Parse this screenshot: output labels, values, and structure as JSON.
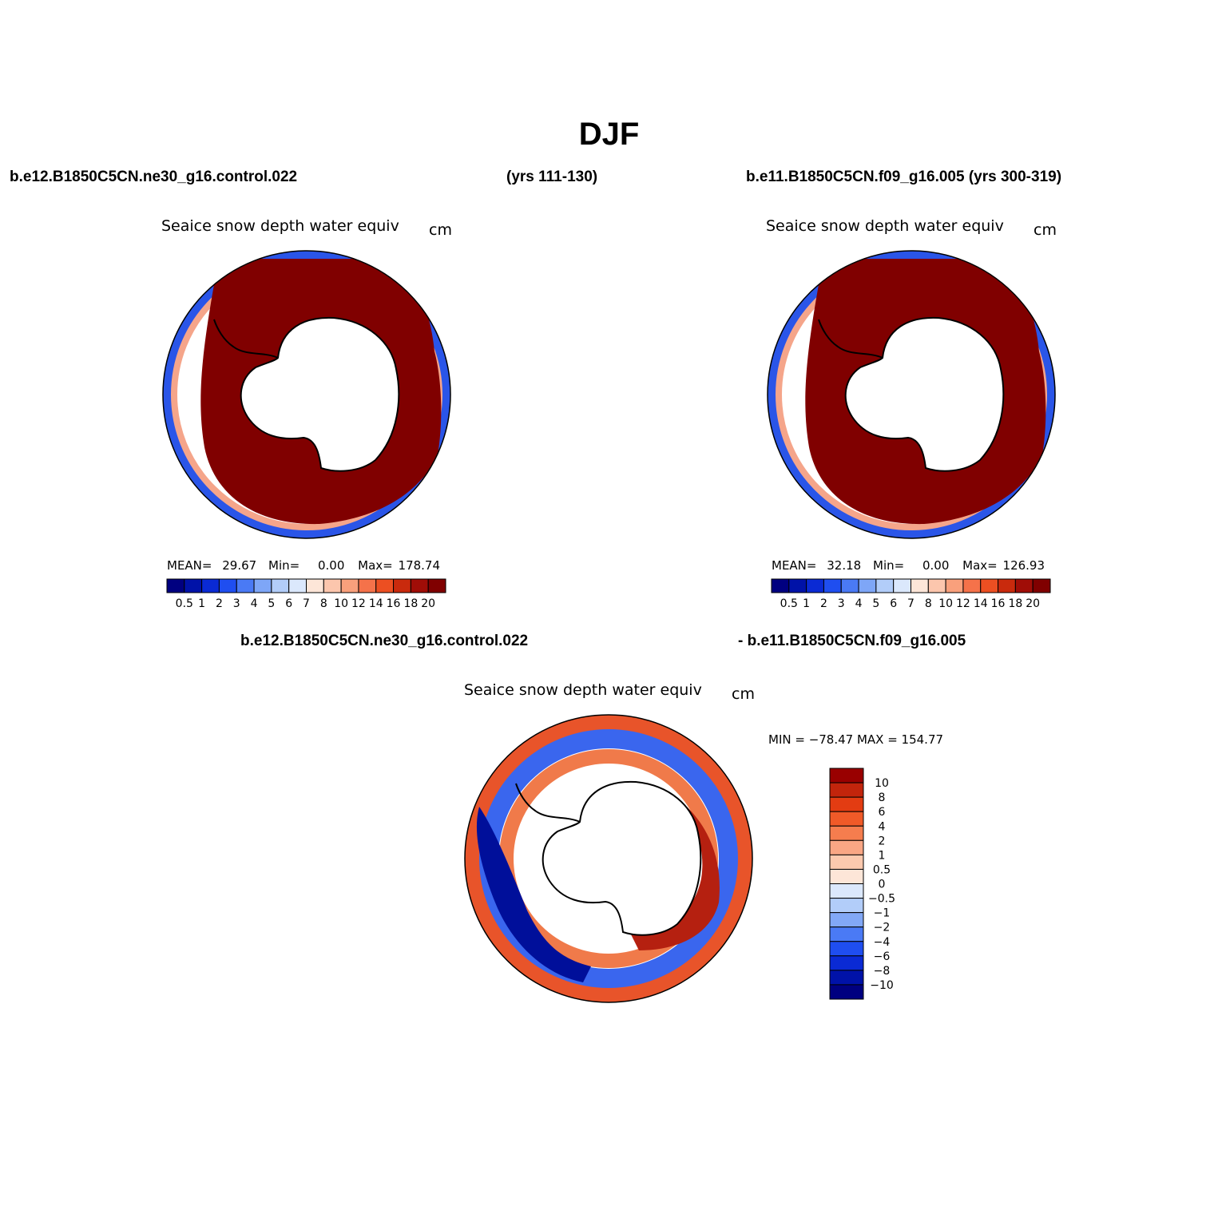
{
  "title": "DJF",
  "header": {
    "left_case": "b.e12.B1850C5CN.ne30_g16.control.022",
    "left_years": "(yrs 111-130)",
    "right_case": "b.e11.B1850C5CN.f09_g16.005 (yrs 300-319)",
    "diff_left": "b.e12.B1850C5CN.ne30_g16.control.022",
    "diff_right": "- b.e11.B1850C5CN.f09_g16.005"
  },
  "panels": [
    {
      "variable": "Seaice snow depth water equiv",
      "units": "cm",
      "stats": {
        "mean_label": "MEAN=",
        "mean": "29.67",
        "min_label": "Min=",
        "min": "0.00",
        "max_label": "Max=",
        "max": "178.74"
      }
    },
    {
      "variable": "Seaice snow depth water equiv",
      "units": "cm",
      "stats": {
        "mean_label": "MEAN=",
        "mean": "32.18",
        "min_label": "Min=",
        "min": "0.00",
        "max_label": "Max=",
        "max": "126.93"
      }
    },
    {
      "variable": "Seaice snow depth water equiv",
      "units": "cm",
      "minmax": "MIN = −78.47  MAX = 154.77"
    }
  ],
  "legend_abs": {
    "labels": [
      "0.5",
      "1",
      "2",
      "3",
      "4",
      "5",
      "6",
      "7",
      "8",
      "10",
      "12",
      "14",
      "16",
      "18",
      "20"
    ],
    "colors": [
      "#000080",
      "#0012a8",
      "#0a2ad4",
      "#1f4ef0",
      "#4a7af5",
      "#7ea6f7",
      "#b2cdf9",
      "#dbe8fc",
      "#fde6d8",
      "#fcc6ad",
      "#f9a07c",
      "#f5724a",
      "#ec4f22",
      "#c92a0d",
      "#a00d07",
      "#800000"
    ]
  },
  "legend_diff": {
    "labels": [
      "10",
      "8",
      "6",
      "4",
      "2",
      "1",
      "0.5",
      "0",
      "−0.5",
      "−1",
      "−2",
      "−4",
      "−6",
      "−8",
      "−10"
    ],
    "colors": [
      "#990000",
      "#c2250c",
      "#e33c12",
      "#f05a28",
      "#f57d4e",
      "#f9a684",
      "#fcc9ae",
      "#fde6d8",
      "#dbe8fc",
      "#b2cdf9",
      "#82a8f6",
      "#4a7af5",
      "#1f4ef0",
      "#0a2ad4",
      "#0012a8",
      "#000080"
    ]
  }
}
